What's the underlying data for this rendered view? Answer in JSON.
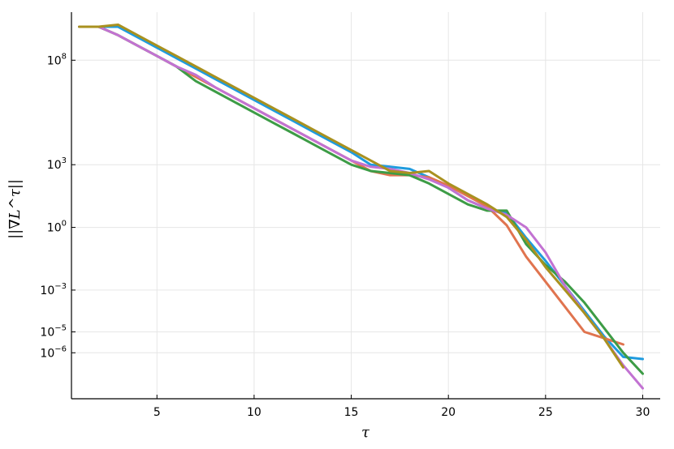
{
  "chart_data": {
    "type": "line",
    "xlabel": "τ",
    "ylabel": "||∇L^τ||",
    "y_scale": "log10",
    "grid": true,
    "legend": "none",
    "xlim": [
      0.6,
      30.9
    ],
    "ylim_log10": [
      -8.2,
      10.3
    ],
    "x_ticks": [
      {
        "value": 5,
        "label": "5"
      },
      {
        "value": 10,
        "label": "10"
      },
      {
        "value": 15,
        "label": "15"
      },
      {
        "value": 20,
        "label": "20"
      },
      {
        "value": 25,
        "label": "25"
      },
      {
        "value": 30,
        "label": "30"
      }
    ],
    "y_ticks": [
      {
        "exp": 8,
        "base": "10",
        "sup": "8"
      },
      {
        "exp": 3,
        "base": "10",
        "sup": "3"
      },
      {
        "exp": 0,
        "base": "10",
        "sup": "0"
      },
      {
        "exp": -3,
        "base": "10",
        "sup": "−3"
      },
      {
        "exp": -5,
        "base": "10",
        "sup": "−5"
      },
      {
        "exp": -6,
        "base": "10",
        "sup": "−6"
      }
    ],
    "series": [
      {
        "color": "#1f9bde",
        "x": [
          1,
          2,
          3,
          4,
          5,
          6,
          7,
          8,
          9,
          10,
          11,
          12,
          13,
          14,
          15,
          16,
          17,
          18,
          19,
          20,
          21,
          22,
          23,
          24,
          25,
          26,
          27,
          28,
          29,
          30
        ],
        "log10_y": [
          9.6,
          9.6,
          9.6,
          9.1,
          8.6,
          8.1,
          7.6,
          7.1,
          6.6,
          6.1,
          5.6,
          5.1,
          4.6,
          4.1,
          3.6,
          3.0,
          2.9,
          2.8,
          2.4,
          1.9,
          1.3,
          0.9,
          0.7,
          -0.5,
          -1.6,
          -2.8,
          -4.0,
          -5.2,
          -6.2,
          -6.3
        ]
      },
      {
        "color": "#e0744f",
        "x": [
          1,
          2,
          3,
          4,
          5,
          6,
          7,
          8,
          9,
          10,
          11,
          12,
          13,
          14,
          15,
          16,
          17,
          18,
          19,
          20,
          21,
          22,
          23,
          24,
          25,
          26,
          27,
          28,
          29
        ],
        "log10_y": [
          9.6,
          9.6,
          9.2,
          8.7,
          8.2,
          7.7,
          7.2,
          6.7,
          6.2,
          5.7,
          5.2,
          4.7,
          4.2,
          3.7,
          3.2,
          2.7,
          2.5,
          2.5,
          2.4,
          2.0,
          1.5,
          1.0,
          0.1,
          -1.4,
          -2.6,
          -3.8,
          -5.0,
          -5.3,
          -5.6
        ]
      },
      {
        "color": "#3d9c46",
        "x": [
          1,
          2,
          3,
          4,
          5,
          6,
          7,
          8,
          9,
          10,
          11,
          12,
          13,
          14,
          15,
          16,
          17,
          18,
          19,
          20,
          21,
          22,
          23,
          24,
          25,
          26,
          27,
          28,
          29,
          30
        ],
        "log10_y": [
          9.6,
          9.6,
          9.2,
          8.7,
          8.2,
          7.7,
          7.0,
          6.5,
          6.0,
          5.5,
          5.0,
          4.5,
          4.0,
          3.5,
          3.0,
          2.7,
          2.6,
          2.5,
          2.1,
          1.6,
          1.1,
          0.8,
          0.8,
          -0.8,
          -1.8,
          -2.6,
          -3.6,
          -4.8,
          -6.0,
          -7.0
        ]
      },
      {
        "color": "#c272d2",
        "x": [
          1,
          2,
          3,
          4,
          5,
          6,
          7,
          8,
          9,
          10,
          11,
          12,
          13,
          14,
          15,
          16,
          17,
          18,
          19,
          20,
          21,
          22,
          23,
          24,
          25,
          26,
          27,
          28,
          29,
          30
        ],
        "log10_y": [
          9.6,
          9.6,
          9.2,
          8.7,
          8.2,
          7.7,
          7.3,
          6.7,
          6.2,
          5.7,
          5.2,
          4.7,
          4.2,
          3.7,
          3.2,
          2.9,
          2.8,
          2.6,
          2.3,
          1.9,
          1.3,
          0.9,
          0.6,
          0.0,
          -1.2,
          -2.8,
          -4.1,
          -5.3,
          -6.6,
          -7.7
        ]
      },
      {
        "color": "#a9911f",
        "x": [
          1,
          2,
          3,
          4,
          5,
          6,
          7,
          8,
          9,
          10,
          11,
          12,
          13,
          14,
          15,
          16,
          17,
          18,
          19,
          20,
          21,
          22,
          23,
          24,
          25,
          26,
          27,
          28,
          29
        ],
        "log10_y": [
          9.6,
          9.6,
          9.7,
          9.2,
          8.7,
          8.2,
          7.7,
          7.2,
          6.7,
          6.2,
          5.7,
          5.2,
          4.7,
          4.2,
          3.7,
          3.2,
          2.7,
          2.6,
          2.7,
          2.1,
          1.6,
          1.1,
          0.5,
          -0.6,
          -1.9,
          -3.0,
          -4.1,
          -5.3,
          -6.7
        ]
      }
    ]
  }
}
